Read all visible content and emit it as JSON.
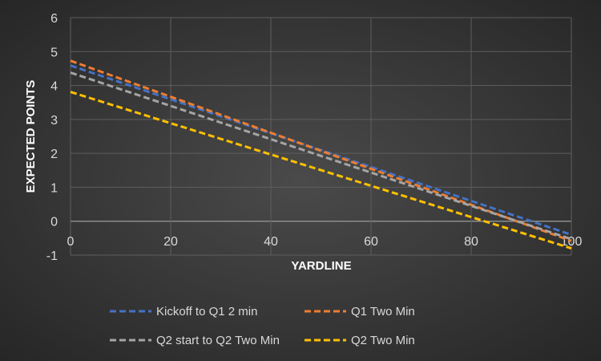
{
  "chart_data": {
    "type": "line",
    "title": "",
    "xlabel": "YARDLINE",
    "ylabel": "EXPECTED POINTS",
    "xlim": [
      0,
      100
    ],
    "ylim": [
      -1,
      6
    ],
    "xticks": [
      "0",
      "20",
      "40",
      "60",
      "80",
      "100"
    ],
    "yticks": [
      "-1",
      "0",
      "1",
      "2",
      "3",
      "4",
      "5",
      "6"
    ],
    "grid": true,
    "legend_position": "bottom",
    "x": [
      0,
      100
    ],
    "series": [
      {
        "name": "Kickoff to Q1 2 min",
        "values": [
          4.59,
          -0.4
        ],
        "color": "#4472c4"
      },
      {
        "name": "Q1 Two Min",
        "values": [
          4.73,
          -0.58
        ],
        "color": "#ed7d31"
      },
      {
        "name": "Q2 start to Q2 Two Min",
        "values": [
          4.38,
          -0.53
        ],
        "color": "#a5a5a5"
      },
      {
        "name": "Q2 Two Min",
        "values": [
          3.81,
          -0.8
        ],
        "color": "#ffc000"
      }
    ]
  }
}
